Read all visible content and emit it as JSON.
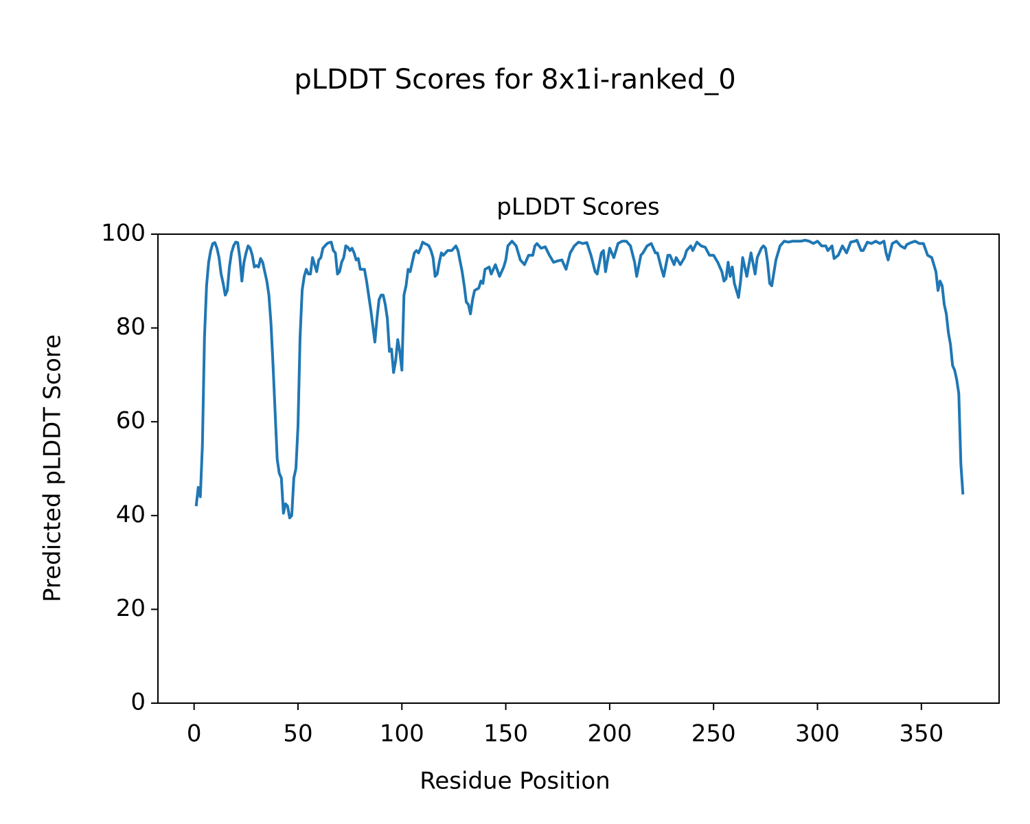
{
  "chart_data": {
    "type": "line",
    "title": "pLDDT Scores for 8x1i-ranked_0",
    "subtitle": "pLDDT Scores",
    "x_label": "Residue Position",
    "y_label": "Predicted pLDDT Score",
    "xlim": [
      -17.4,
      387.4
    ],
    "ylim": [
      0,
      100
    ],
    "xticks": [
      0,
      50,
      100,
      150,
      200,
      250,
      300,
      350
    ],
    "yticks": [
      0,
      20,
      40,
      60,
      80,
      100
    ],
    "grid": false,
    "series": [
      {
        "name": "pLDDT",
        "color": "#1f77b4",
        "x": [
          1,
          2,
          3,
          4,
          5,
          6,
          7,
          8,
          9,
          10,
          11,
          12,
          13,
          14,
          15,
          16,
          17,
          18,
          19,
          20,
          21,
          22,
          23,
          24,
          25,
          26,
          27,
          28,
          29,
          30,
          31,
          32,
          33,
          34,
          35,
          36,
          37,
          38,
          39,
          40,
          41,
          42,
          43,
          44,
          45,
          46,
          47,
          48,
          49,
          50,
          51,
          52,
          53,
          54,
          55,
          56,
          57,
          58,
          59,
          60,
          61,
          62,
          63,
          64,
          65,
          66,
          67,
          68,
          69,
          70,
          71,
          72,
          73,
          74,
          75,
          76,
          77,
          78,
          79,
          80,
          81,
          82,
          83,
          84,
          85,
          86,
          87,
          88,
          89,
          90,
          91,
          92,
          93,
          94,
          95,
          96,
          97,
          98,
          99,
          100,
          101,
          102,
          103,
          104,
          105,
          106,
          107,
          108,
          109,
          110,
          111,
          112,
          113,
          114,
          115,
          116,
          117,
          118,
          119,
          120,
          122,
          124,
          126,
          127,
          129,
          130,
          131,
          132,
          133,
          134,
          135,
          137,
          138,
          139,
          140,
          142,
          143,
          145,
          147,
          149,
          150,
          151,
          153,
          155,
          157,
          159,
          161,
          163,
          164,
          165,
          167,
          169,
          171,
          173,
          175,
          177,
          179,
          181,
          183,
          185,
          187,
          189,
          191,
          193,
          194,
          196,
          197,
          198,
          200,
          201,
          202,
          204,
          206,
          208,
          210,
          212,
          213,
          215,
          216,
          218,
          220,
          222,
          223,
          225,
          226,
          228,
          229,
          231,
          232,
          234,
          236,
          237,
          239,
          240,
          242,
          244,
          246,
          248,
          250,
          252,
          254,
          255,
          256,
          257,
          258,
          259,
          260,
          262,
          263,
          264,
          266,
          268,
          270,
          271,
          273,
          274,
          275,
          276,
          277,
          278,
          280,
          282,
          284,
          286,
          288,
          290,
          292,
          294,
          296,
          298,
          300,
          302,
          304,
          305,
          307,
          308,
          310,
          312,
          314,
          316,
          318,
          319,
          321,
          322,
          324,
          326,
          328,
          330,
          332,
          333,
          334,
          336,
          338,
          340,
          342,
          343,
          345,
          347,
          349,
          351,
          353,
          355,
          357,
          358,
          359,
          360,
          361,
          362,
          363,
          364,
          365,
          366,
          367,
          368,
          369,
          370
        ],
        "values": [
          42,
          46,
          44,
          55,
          78,
          89,
          94,
          96.5,
          98,
          98.2,
          97,
          95,
          91.5,
          89.5,
          87,
          88,
          93,
          96,
          97.5,
          98.3,
          98.2,
          95,
          90,
          94,
          96,
          97.5,
          97,
          95.5,
          93,
          93.3,
          93,
          94.8,
          94,
          92,
          90,
          87,
          81,
          72,
          62,
          52,
          49,
          48,
          40.5,
          42.5,
          42,
          39.5,
          40,
          48,
          50,
          59,
          78,
          88,
          91,
          92.5,
          91.5,
          91.5,
          95,
          93.5,
          92,
          94.5,
          95,
          97,
          97.5,
          98,
          98.2,
          98.3,
          96.5,
          96,
          91.5,
          92,
          94,
          95,
          97.5,
          97.2,
          96.5,
          97,
          96,
          94.5,
          94.8,
          92.5,
          92.5,
          92.5,
          90,
          87,
          84,
          80.5,
          77,
          82,
          86,
          87,
          87,
          85,
          82,
          75,
          75.5,
          70.5,
          73,
          77.5,
          75,
          71,
          87,
          89,
          92.5,
          92,
          94,
          96,
          96.5,
          96,
          97,
          98.3,
          98,
          97.8,
          97.5,
          96.5,
          95,
          91,
          91.5,
          94,
          96,
          95.5,
          96.5,
          96.5,
          97.5,
          96.5,
          92,
          89,
          85.5,
          85,
          83,
          86,
          88,
          88.5,
          90,
          89.5,
          92.5,
          93,
          91.5,
          93.5,
          91,
          93,
          94.5,
          97.5,
          98.5,
          97.5,
          94.5,
          93.5,
          95.5,
          95.5,
          97.5,
          98,
          97,
          97.3,
          95.5,
          94,
          94.3,
          94.5,
          92.5,
          96,
          97.5,
          98.3,
          98,
          98.2,
          95.5,
          92,
          91.5,
          96,
          96.5,
          92,
          97,
          96,
          95,
          98,
          98.5,
          98.5,
          97.5,
          94,
          91,
          95.5,
          96,
          97.5,
          98,
          96,
          96,
          92.5,
          91,
          95.5,
          95.5,
          93.5,
          95,
          93.5,
          95,
          96.5,
          97.5,
          96.5,
          98.3,
          97.5,
          97.2,
          95.5,
          95.5,
          94,
          92,
          90,
          90.5,
          94,
          91,
          93,
          89.5,
          86.5,
          90,
          95,
          91,
          96,
          91.5,
          95,
          97,
          97.5,
          97,
          94,
          89.5,
          89,
          94.5,
          97.5,
          98.5,
          98.3,
          98.5,
          98.5,
          98.5,
          98.7,
          98.5,
          98,
          98.5,
          97.5,
          97.5,
          96.5,
          97.5,
          94.8,
          95.5,
          97.5,
          96,
          98.3,
          98.5,
          98.7,
          96.5,
          96.5,
          98.3,
          98,
          98.5,
          98,
          98.5,
          96,
          94.5,
          98,
          98.5,
          97.5,
          97,
          97.8,
          98.2,
          98.5,
          98,
          98,
          95.5,
          95,
          92,
          88,
          90,
          89,
          85,
          83,
          79,
          76.5,
          72,
          71,
          69,
          66,
          51,
          44.5
        ]
      }
    ]
  }
}
